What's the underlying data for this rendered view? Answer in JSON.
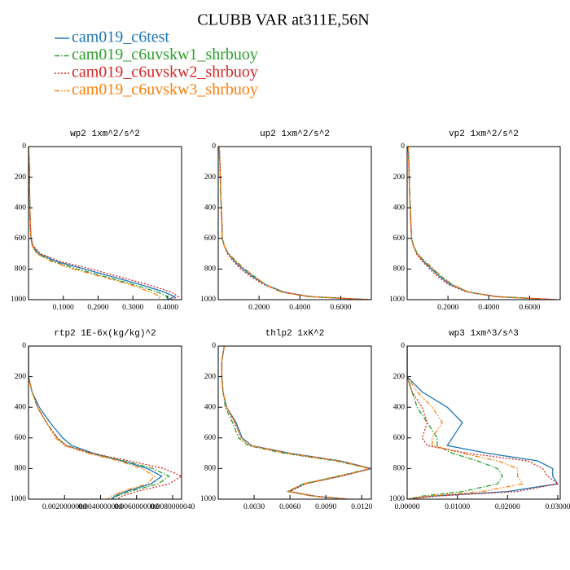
{
  "title": "CLUBB VAR at311E,56N",
  "legend": [
    {
      "name": "cam019_c6test",
      "color": "#1f77b4",
      "dash": "solid"
    },
    {
      "name": "cam019_c6uvskw1_shrbuoy",
      "color": "#2ca02c",
      "dash": "dashdot"
    },
    {
      "name": "cam019_c6uvskw2_shrbuoy",
      "color": "#d62728",
      "dash": "dotted"
    },
    {
      "name": "cam019_c6uvskw3_shrbuoy",
      "color": "#ff7f0e",
      "dash": "dashdotdot"
    }
  ],
  "chart_data": [
    {
      "type": "line",
      "title": "wp2  1xm^2/s^2",
      "y_inverted": true,
      "y": [
        0,
        100,
        200,
        300,
        400,
        500,
        600,
        650,
        700,
        750,
        800,
        850,
        900,
        950,
        980,
        1000
      ],
      "ylim": [
        0,
        1000
      ],
      "yticks": [
        0,
        200,
        400,
        600,
        800,
        1000
      ],
      "xlim": [
        0,
        0.44
      ],
      "xticks": [
        {
          "value": 0.1,
          "label": "0.1000"
        },
        {
          "value": 0.2,
          "label": "0.2000"
        },
        {
          "value": 0.3,
          "label": "0.3000"
        },
        {
          "value": 0.4,
          "label": "0.4000"
        }
      ],
      "series": [
        {
          "values": [
            0,
            0.002,
            0.003,
            0.003,
            0.004,
            0.005,
            0.007,
            0.012,
            0.03,
            0.08,
            0.16,
            0.24,
            0.32,
            0.39,
            0.42,
            0.4
          ]
        },
        {
          "values": [
            0,
            0.002,
            0.003,
            0.003,
            0.004,
            0.005,
            0.007,
            0.011,
            0.025,
            0.07,
            0.14,
            0.22,
            0.3,
            0.37,
            0.4,
            0.39
          ]
        },
        {
          "values": [
            0,
            0.002,
            0.003,
            0.003,
            0.004,
            0.005,
            0.008,
            0.014,
            0.035,
            0.09,
            0.18,
            0.26,
            0.34,
            0.41,
            0.43,
            0.41
          ]
        },
        {
          "values": [
            0,
            0.002,
            0.003,
            0.003,
            0.004,
            0.005,
            0.007,
            0.011,
            0.024,
            0.065,
            0.13,
            0.21,
            0.29,
            0.35,
            0.38,
            0.37
          ]
        }
      ]
    },
    {
      "type": "line",
      "title": "up2  1xm^2/s^2",
      "y_inverted": true,
      "y": [
        0,
        100,
        200,
        300,
        400,
        500,
        600,
        650,
        700,
        750,
        800,
        850,
        900,
        950,
        980,
        1000
      ],
      "ylim": [
        0,
        1000
      ],
      "yticks": [
        0,
        200,
        400,
        600,
        800,
        1000
      ],
      "xlim": [
        0,
        0.75
      ],
      "xticks": [
        {
          "value": 0.2,
          "label": "0.2000"
        },
        {
          "value": 0.4,
          "label": "0.4000"
        },
        {
          "value": 0.6,
          "label": "0.6000"
        }
      ],
      "series": [
        {
          "values": [
            0.005,
            0.008,
            0.01,
            0.012,
            0.015,
            0.018,
            0.02,
            0.03,
            0.05,
            0.08,
            0.12,
            0.17,
            0.23,
            0.32,
            0.45,
            0.74
          ]
        },
        {
          "values": [
            0.005,
            0.008,
            0.01,
            0.012,
            0.015,
            0.018,
            0.02,
            0.03,
            0.05,
            0.09,
            0.13,
            0.18,
            0.23,
            0.31,
            0.44,
            0.73
          ]
        },
        {
          "values": [
            0.005,
            0.008,
            0.01,
            0.012,
            0.015,
            0.018,
            0.02,
            0.03,
            0.045,
            0.075,
            0.11,
            0.16,
            0.22,
            0.31,
            0.45,
            0.75
          ]
        },
        {
          "values": [
            0.005,
            0.008,
            0.01,
            0.012,
            0.015,
            0.018,
            0.02,
            0.03,
            0.05,
            0.085,
            0.13,
            0.18,
            0.23,
            0.31,
            0.44,
            0.74
          ]
        }
      ]
    },
    {
      "type": "line",
      "title": "vp2  1xm^2/s^2",
      "y_inverted": true,
      "y": [
        0,
        100,
        200,
        300,
        400,
        500,
        600,
        650,
        700,
        750,
        800,
        850,
        900,
        950,
        980,
        1000
      ],
      "ylim": [
        0,
        1000
      ],
      "yticks": [
        0,
        200,
        400,
        600,
        800,
        1000
      ],
      "xlim": [
        0,
        0.75
      ],
      "xticks": [
        {
          "value": 0.2,
          "label": "0.2000"
        },
        {
          "value": 0.4,
          "label": "0.4000"
        },
        {
          "value": 0.6,
          "label": "0.6000"
        }
      ],
      "series": [
        {
          "values": [
            0.005,
            0.008,
            0.01,
            0.012,
            0.015,
            0.018,
            0.022,
            0.032,
            0.05,
            0.08,
            0.12,
            0.16,
            0.21,
            0.3,
            0.44,
            0.73
          ]
        },
        {
          "values": [
            0.005,
            0.008,
            0.01,
            0.012,
            0.015,
            0.018,
            0.022,
            0.032,
            0.05,
            0.085,
            0.125,
            0.17,
            0.22,
            0.3,
            0.43,
            0.72
          ]
        },
        {
          "values": [
            0.005,
            0.008,
            0.01,
            0.012,
            0.015,
            0.018,
            0.021,
            0.03,
            0.045,
            0.075,
            0.11,
            0.15,
            0.2,
            0.29,
            0.44,
            0.74
          ]
        },
        {
          "values": [
            0.005,
            0.008,
            0.01,
            0.012,
            0.015,
            0.018,
            0.022,
            0.032,
            0.05,
            0.09,
            0.13,
            0.17,
            0.22,
            0.3,
            0.43,
            0.73
          ]
        }
      ]
    },
    {
      "type": "line",
      "title": "rtp2  1E-6x(kg/kg)^2",
      "y_inverted": true,
      "y": [
        0,
        100,
        200,
        300,
        400,
        500,
        600,
        650,
        700,
        750,
        800,
        850,
        900,
        950,
        980,
        1000
      ],
      "ylim": [
        0,
        1000
      ],
      "yticks": [
        0,
        200,
        400,
        600,
        800,
        1000
      ],
      "xlim": [
        0,
        0.0085
      ],
      "xticks": [
        {
          "value": 0.002,
          "label": "0.0020000000"
        },
        {
          "value": 0.004,
          "label": "0.0040000000"
        },
        {
          "value": 0.006,
          "label": "0.0060000000"
        },
        {
          "value": 0.008,
          "label": "0.0080000040"
        }
      ],
      "series": [
        {
          "values": [
            0,
            0,
            0,
            0.0002,
            0.0006,
            0.0012,
            0.0019,
            0.0024,
            0.0036,
            0.0052,
            0.0066,
            0.0074,
            0.0068,
            0.0054,
            0.0048,
            0.0046
          ]
        },
        {
          "values": [
            0,
            0,
            0,
            0.0002,
            0.0005,
            0.001,
            0.0016,
            0.0021,
            0.0034,
            0.0053,
            0.0069,
            0.0078,
            0.0072,
            0.0056,
            0.0049,
            0.0047
          ]
        },
        {
          "values": [
            0,
            0,
            0,
            0.0002,
            0.0005,
            0.001,
            0.0016,
            0.0021,
            0.0035,
            0.0056,
            0.0075,
            0.0085,
            0.0078,
            0.006,
            0.0052,
            0.0049
          ]
        },
        {
          "values": [
            0,
            0,
            0,
            0.0002,
            0.0005,
            0.001,
            0.0015,
            0.002,
            0.0033,
            0.005,
            0.0063,
            0.007,
            0.0066,
            0.0052,
            0.0046,
            0.0044
          ]
        }
      ]
    },
    {
      "type": "line",
      "title": "thlp2  1xK^2",
      "y_inverted": true,
      "y": [
        0,
        100,
        200,
        300,
        400,
        500,
        600,
        650,
        700,
        750,
        800,
        850,
        900,
        950,
        980,
        1000
      ],
      "ylim": [
        0,
        1000
      ],
      "yticks": [
        0,
        200,
        400,
        600,
        800,
        1000
      ],
      "xlim": [
        0,
        0.0128
      ],
      "xticks": [
        {
          "value": 0.003,
          "label": "0.0030"
        },
        {
          "value": 0.006,
          "label": "0.0060"
        },
        {
          "value": 0.009,
          "label": "0.0090"
        },
        {
          "value": 0.012,
          "label": "0.0120"
        }
      ],
      "series": [
        {
          "values": [
            0.0005,
            0.0003,
            0.0003,
            0.0004,
            0.0007,
            0.0015,
            0.002,
            0.0028,
            0.006,
            0.0102,
            0.0128,
            0.0102,
            0.0072,
            0.0059,
            0.008,
            0.0108
          ]
        },
        {
          "values": [
            0.0005,
            0.0003,
            0.0003,
            0.0004,
            0.0006,
            0.0012,
            0.0017,
            0.0025,
            0.0055,
            0.0098,
            0.0127,
            0.01,
            0.0071,
            0.0058,
            0.0079,
            0.0107
          ]
        },
        {
          "values": [
            0.0005,
            0.0003,
            0.0003,
            0.0004,
            0.0007,
            0.0014,
            0.0019,
            0.0027,
            0.0058,
            0.0101,
            0.0128,
            0.0103,
            0.0073,
            0.006,
            0.0081,
            0.0109
          ]
        },
        {
          "values": [
            0.0005,
            0.0003,
            0.0003,
            0.0004,
            0.0007,
            0.0014,
            0.0019,
            0.0027,
            0.0058,
            0.01,
            0.0127,
            0.0101,
            0.0071,
            0.0058,
            0.0079,
            0.0107
          ]
        }
      ]
    },
    {
      "type": "line",
      "title": "wp3  1xm^3/s^3",
      "y_inverted": true,
      "y": [
        0,
        100,
        200,
        300,
        400,
        500,
        600,
        650,
        700,
        750,
        800,
        850,
        900,
        950,
        980,
        1000
      ],
      "ylim": [
        0,
        1000
      ],
      "yticks": [
        0,
        200,
        400,
        600,
        800,
        1000
      ],
      "xlim": [
        0,
        0.0305
      ],
      "xticks": [
        {
          "value": 0,
          "label": "0.00000"
        },
        {
          "value": 0.01,
          "label": "0.01000"
        },
        {
          "value": 0.02,
          "label": "0.02000"
        },
        {
          "value": 0.03,
          "label": "0.03000"
        }
      ],
      "series": [
        {
          "values": [
            0,
            0,
            0,
            0.003,
            0.008,
            0.011,
            0.009,
            0.008,
            0.016,
            0.026,
            0.029,
            0.029,
            0.03,
            0.02,
            0.005,
            0
          ]
        },
        {
          "values": [
            0,
            0,
            0,
            0.001,
            0.002,
            0.004,
            0.006,
            0.006,
            0.009,
            0.014,
            0.018,
            0.019,
            0.018,
            0.011,
            0.003,
            0
          ]
        },
        {
          "values": [
            0,
            0,
            0,
            0.001,
            0.003,
            0.004,
            0.003,
            0.004,
            0.012,
            0.024,
            0.027,
            0.028,
            0.03,
            0.022,
            0.006,
            0
          ]
        },
        {
          "values": [
            0,
            0,
            0,
            0.002,
            0.005,
            0.007,
            0.005,
            0.005,
            0.011,
            0.018,
            0.022,
            0.022,
            0.023,
            0.015,
            0.004,
            0
          ]
        }
      ]
    }
  ]
}
